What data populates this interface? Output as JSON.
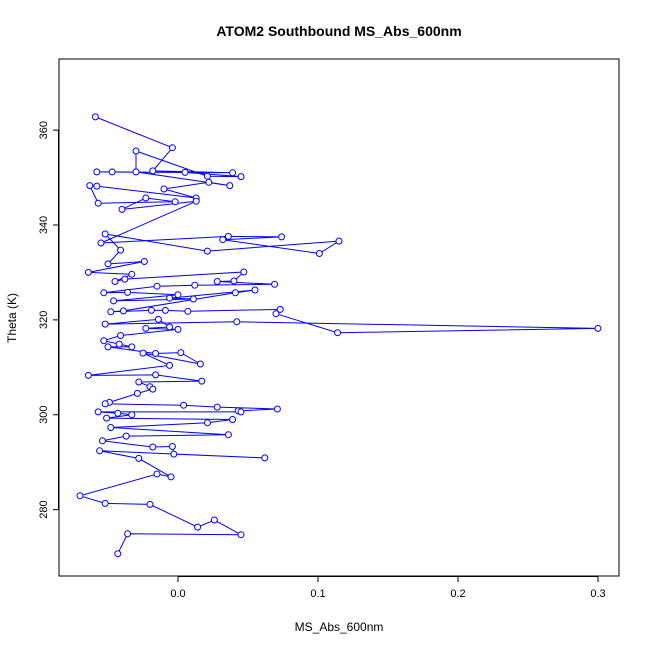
{
  "chart_data": {
    "type": "scatter",
    "title": "ATOM2 Southbound MS_Abs_600nm",
    "xlabel": "MS_Abs_600nm",
    "ylabel": "Theta (K)",
    "xlim": [
      -0.085,
      0.315
    ],
    "ylim": [
      266,
      375
    ],
    "x_ticks": [
      0.0,
      0.1,
      0.2,
      0.3
    ],
    "x_tick_labels": [
      "0.0",
      "0.1",
      "0.2",
      "0.3"
    ],
    "y_ticks": [
      280,
      300,
      320,
      340,
      360
    ],
    "y_tick_labels": [
      "280",
      "300",
      "320",
      "340",
      "360"
    ],
    "series": [
      {
        "color": "#0000ff",
        "marker": "open-circle",
        "connected": true,
        "points": [
          [
            -0.059,
            362.8
          ],
          [
            -0.004,
            356.3
          ],
          [
            -0.018,
            351.4
          ],
          [
            0.039,
            351.0
          ],
          [
            -0.058,
            351.2
          ],
          [
            -0.047,
            351.2
          ],
          [
            0.005,
            351.1
          ],
          [
            0.045,
            350.2
          ],
          [
            0.021,
            350.3
          ],
          [
            -0.03,
            355.6
          ],
          [
            -0.03,
            351.2
          ],
          [
            0.037,
            348.3
          ],
          [
            0.022,
            349.0
          ],
          [
            -0.01,
            347.6
          ],
          [
            0.013,
            345.7
          ],
          [
            -0.058,
            348.2
          ],
          [
            -0.063,
            348.3
          ],
          [
            -0.057,
            344.6
          ],
          [
            -0.002,
            344.9
          ],
          [
            -0.023,
            345.7
          ],
          [
            -0.04,
            343.3
          ],
          [
            0.013,
            345.0
          ],
          [
            -0.055,
            336.2
          ],
          [
            0.036,
            337.6
          ],
          [
            0.074,
            337.5
          ],
          [
            0.032,
            336.9
          ],
          [
            0.101,
            334.0
          ],
          [
            0.115,
            336.6
          ],
          [
            0.021,
            334.5
          ],
          [
            -0.052,
            338.1
          ],
          [
            -0.041,
            334.7
          ],
          [
            -0.05,
            331.8
          ],
          [
            -0.024,
            332.3
          ],
          [
            -0.064,
            330.0
          ],
          [
            -0.033,
            329.6
          ],
          [
            -0.045,
            328.1
          ],
          [
            -0.038,
            328.6
          ],
          [
            0.047,
            330.1
          ],
          [
            0.04,
            328.2
          ],
          [
            0.028,
            328.1
          ],
          [
            0.069,
            327.5
          ],
          [
            0.012,
            327.3
          ],
          [
            -0.015,
            327.1
          ],
          [
            -0.053,
            325.7
          ],
          [
            -0.036,
            325.8
          ],
          [
            -0.0,
            325.3
          ],
          [
            -0.046,
            324.0
          ],
          [
            0.011,
            324.4
          ],
          [
            -0.006,
            324.6
          ],
          [
            0.055,
            326.3
          ],
          [
            0.041,
            325.7
          ],
          [
            -0.039,
            321.9
          ],
          [
            -0.048,
            321.7
          ],
          [
            -0.019,
            322.0
          ],
          [
            -0.009,
            322.0
          ],
          [
            0.007,
            321.8
          ],
          [
            0.073,
            322.2
          ],
          [
            0.07,
            321.3
          ],
          [
            0.114,
            317.3
          ],
          [
            0.3,
            318.2
          ],
          [
            0.042,
            319.6
          ],
          [
            -0.052,
            319.1
          ],
          [
            -0.014,
            320.1
          ],
          [
            -0.006,
            318.5
          ],
          [
            -0.023,
            318.2
          ],
          [
            0.0,
            318.0
          ],
          [
            -0.041,
            316.7
          ],
          [
            -0.053,
            315.6
          ],
          [
            -0.042,
            314.9
          ],
          [
            -0.033,
            314.3
          ],
          [
            -0.05,
            314.3
          ],
          [
            -0.016,
            312.9
          ],
          [
            0.002,
            313.1
          ],
          [
            0.016,
            310.7
          ],
          [
            -0.025,
            313.0
          ],
          [
            -0.006,
            310.4
          ],
          [
            -0.064,
            308.3
          ],
          [
            -0.016,
            308.4
          ],
          [
            0.017,
            307.1
          ],
          [
            -0.028,
            306.9
          ],
          [
            -0.02,
            305.9
          ],
          [
            -0.018,
            305.4
          ],
          [
            -0.029,
            304.5
          ],
          [
            -0.049,
            302.6
          ],
          [
            -0.052,
            302.3
          ],
          [
            0.004,
            302.0
          ],
          [
            0.028,
            301.6
          ],
          [
            0.071,
            301.2
          ],
          [
            0.043,
            300.8
          ],
          [
            0.045,
            300.6
          ],
          [
            -0.057,
            300.6
          ],
          [
            -0.043,
            300.3
          ],
          [
            -0.033,
            300.0
          ],
          [
            -0.051,
            299.3
          ],
          [
            0.039,
            299.0
          ],
          [
            0.021,
            298.3
          ],
          [
            -0.048,
            297.3
          ],
          [
            0.036,
            295.8
          ],
          [
            -0.037,
            295.5
          ],
          [
            -0.054,
            294.5
          ],
          [
            -0.018,
            293.2
          ],
          [
            -0.004,
            293.3
          ],
          [
            -0.003,
            291.7
          ],
          [
            0.062,
            290.9
          ],
          [
            -0.056,
            292.4
          ],
          [
            -0.028,
            290.8
          ],
          [
            -0.005,
            286.9
          ],
          [
            -0.015,
            287.5
          ],
          [
            -0.07,
            282.9
          ],
          [
            -0.052,
            281.3
          ],
          [
            -0.02,
            281.1
          ],
          [
            0.014,
            276.3
          ],
          [
            0.026,
            277.8
          ],
          [
            0.045,
            274.7
          ],
          [
            -0.036,
            274.9
          ],
          [
            -0.043,
            270.7
          ]
        ]
      }
    ]
  }
}
